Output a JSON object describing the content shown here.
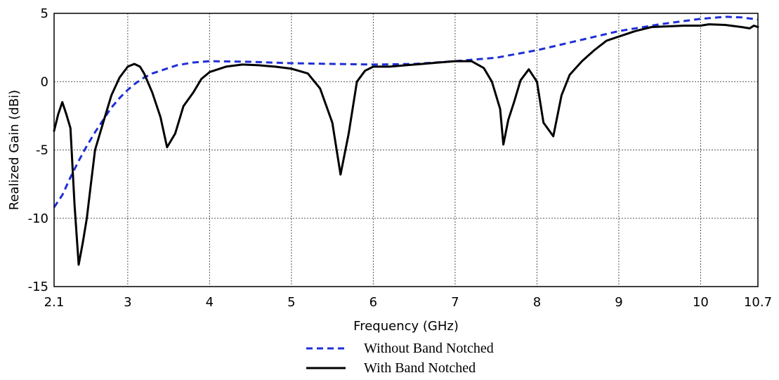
{
  "chart_data": {
    "type": "line",
    "title": "",
    "xlabel": "Frequency (GHz)",
    "ylabel": "Realized Gain (dBi)",
    "xlim": [
      2.1,
      10.7
    ],
    "ylim": [
      -15,
      5
    ],
    "xticks": [
      2.1,
      3,
      4,
      5,
      6,
      7,
      8,
      9,
      10,
      10.7
    ],
    "xtick_labels": [
      "2.1",
      "3",
      "4",
      "5",
      "6",
      "7",
      "8",
      "9",
      "10",
      "10.7"
    ],
    "yticks": [
      5,
      0,
      -5,
      -10,
      -15
    ],
    "ytick_labels": [
      "5",
      "0",
      "-5",
      "-10",
      "-15"
    ],
    "grid": true,
    "legend_position": "bottom-center",
    "series": [
      {
        "name": "Without Band Notched",
        "color": "#1f2fd6",
        "style": "dashed",
        "points": [
          [
            2.1,
            -9.2
          ],
          [
            2.2,
            -8.3
          ],
          [
            2.3,
            -7.0
          ],
          [
            2.4,
            -5.8
          ],
          [
            2.5,
            -4.7
          ],
          [
            2.6,
            -3.7
          ],
          [
            2.7,
            -2.8
          ],
          [
            2.8,
            -1.9
          ],
          [
            2.9,
            -1.2
          ],
          [
            3.0,
            -0.6
          ],
          [
            3.1,
            -0.1
          ],
          [
            3.2,
            0.3
          ],
          [
            3.3,
            0.6
          ],
          [
            3.4,
            0.8
          ],
          [
            3.5,
            1.0
          ],
          [
            3.6,
            1.2
          ],
          [
            3.8,
            1.4
          ],
          [
            4.0,
            1.5
          ],
          [
            4.5,
            1.45
          ],
          [
            5.0,
            1.35
          ],
          [
            5.5,
            1.3
          ],
          [
            6.0,
            1.25
          ],
          [
            6.5,
            1.3
          ],
          [
            7.0,
            1.5
          ],
          [
            7.5,
            1.75
          ],
          [
            8.0,
            2.3
          ],
          [
            8.5,
            3.0
          ],
          [
            9.0,
            3.7
          ],
          [
            9.5,
            4.2
          ],
          [
            10.0,
            4.6
          ],
          [
            10.3,
            4.75
          ],
          [
            10.5,
            4.7
          ],
          [
            10.7,
            4.55
          ]
        ]
      },
      {
        "name": "With Band Notched",
        "color": "#000000",
        "style": "solid",
        "points": [
          [
            2.1,
            -3.6
          ],
          [
            2.15,
            -2.4
          ],
          [
            2.2,
            -1.5
          ],
          [
            2.25,
            -2.4
          ],
          [
            2.3,
            -3.4
          ],
          [
            2.35,
            -9.0
          ],
          [
            2.4,
            -13.4
          ],
          [
            2.45,
            -11.8
          ],
          [
            2.5,
            -10.0
          ],
          [
            2.55,
            -7.5
          ],
          [
            2.6,
            -5.0
          ],
          [
            2.7,
            -3.0
          ],
          [
            2.8,
            -1.0
          ],
          [
            2.9,
            0.3
          ],
          [
            3.0,
            1.1
          ],
          [
            3.08,
            1.3
          ],
          [
            3.15,
            1.1
          ],
          [
            3.2,
            0.6
          ],
          [
            3.3,
            -0.8
          ],
          [
            3.4,
            -2.6
          ],
          [
            3.48,
            -4.8
          ],
          [
            3.58,
            -3.8
          ],
          [
            3.68,
            -1.8
          ],
          [
            3.8,
            -0.8
          ],
          [
            3.9,
            0.2
          ],
          [
            4.0,
            0.7
          ],
          [
            4.2,
            1.1
          ],
          [
            4.4,
            1.25
          ],
          [
            4.6,
            1.2
          ],
          [
            4.8,
            1.1
          ],
          [
            5.0,
            0.95
          ],
          [
            5.2,
            0.6
          ],
          [
            5.35,
            -0.5
          ],
          [
            5.5,
            -3.0
          ],
          [
            5.6,
            -6.8
          ],
          [
            5.7,
            -3.8
          ],
          [
            5.8,
            0.0
          ],
          [
            5.9,
            0.8
          ],
          [
            6.0,
            1.1
          ],
          [
            6.2,
            1.1
          ],
          [
            6.4,
            1.2
          ],
          [
            6.6,
            1.3
          ],
          [
            6.8,
            1.4
          ],
          [
            7.0,
            1.5
          ],
          [
            7.2,
            1.5
          ],
          [
            7.35,
            1.0
          ],
          [
            7.45,
            0.0
          ],
          [
            7.55,
            -2.0
          ],
          [
            7.59,
            -4.6
          ],
          [
            7.65,
            -2.8
          ],
          [
            7.72,
            -1.5
          ],
          [
            7.8,
            0.1
          ],
          [
            7.9,
            0.9
          ],
          [
            8.0,
            0.0
          ],
          [
            8.08,
            -3.0
          ],
          [
            8.2,
            -4.0
          ],
          [
            8.3,
            -1.0
          ],
          [
            8.4,
            0.5
          ],
          [
            8.55,
            1.5
          ],
          [
            8.7,
            2.3
          ],
          [
            8.85,
            3.0
          ],
          [
            9.0,
            3.3
          ],
          [
            9.2,
            3.7
          ],
          [
            9.4,
            4.0
          ],
          [
            9.6,
            4.05
          ],
          [
            9.8,
            4.1
          ],
          [
            10.0,
            4.1
          ],
          [
            10.1,
            4.2
          ],
          [
            10.3,
            4.15
          ],
          [
            10.5,
            4.0
          ],
          [
            10.6,
            3.9
          ],
          [
            10.65,
            4.1
          ],
          [
            10.7,
            4.0
          ]
        ]
      }
    ]
  }
}
